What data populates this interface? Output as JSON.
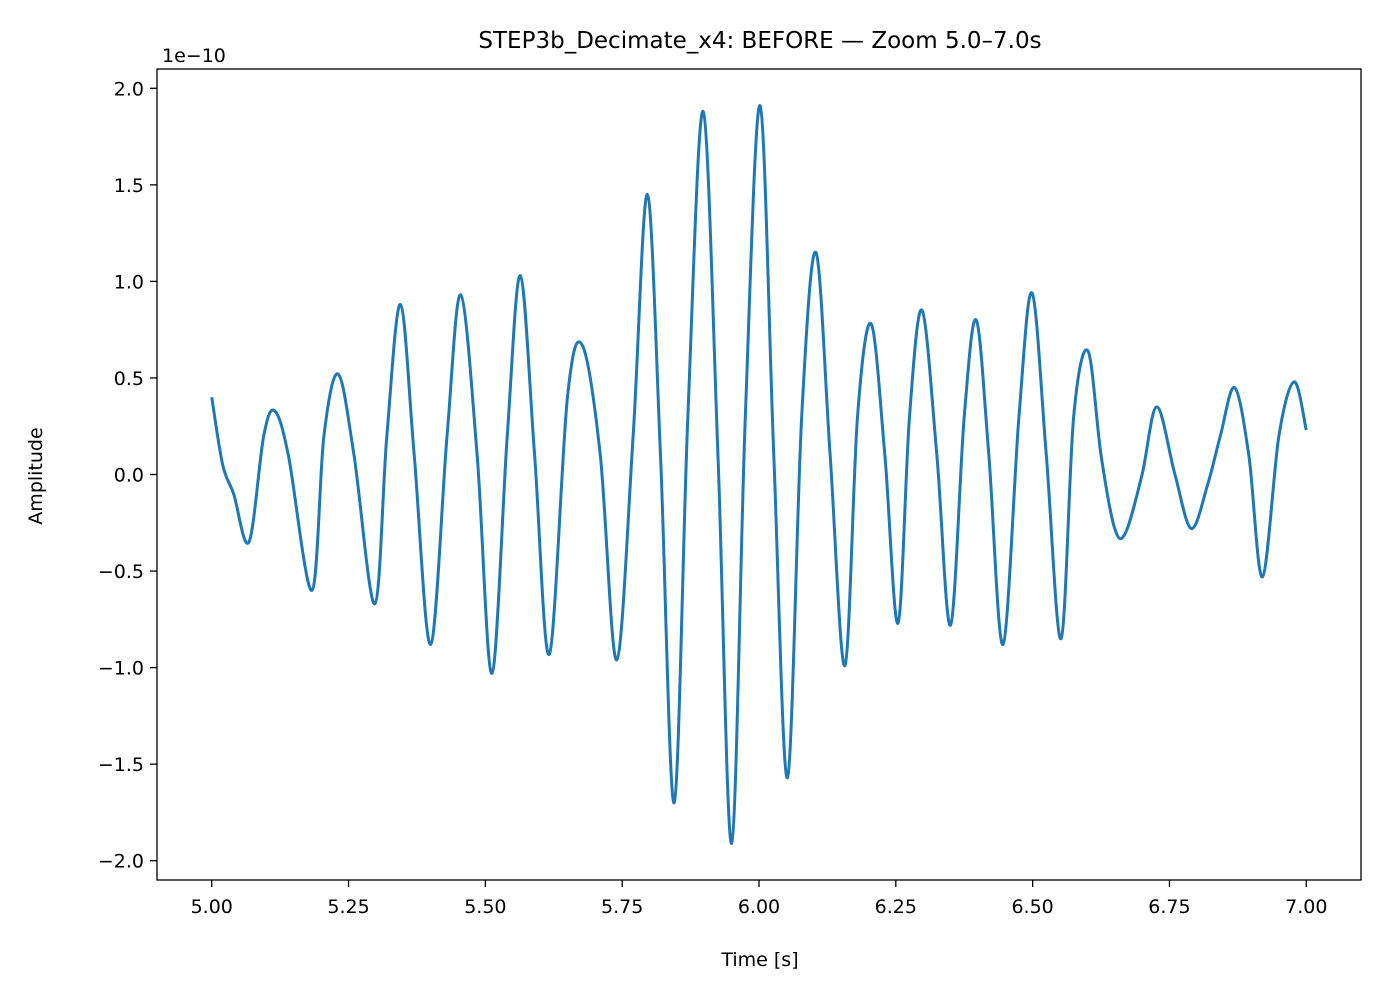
{
  "chart_data": {
    "type": "line",
    "title": "STEP3b_Decimate_x4: BEFORE — Zoom 5.0–7.0s",
    "xlabel": "Time [s]",
    "ylabel": "Amplitude",
    "y_offset_label": "1e−10",
    "xlim": [
      4.9,
      7.1
    ],
    "ylim": [
      -2.1,
      2.1
    ],
    "grid": false,
    "line_color": "#1f77b4",
    "x_ticks": [
      5.0,
      5.25,
      5.5,
      5.75,
      6.0,
      6.25,
      6.5,
      6.75,
      7.0
    ],
    "x_tick_labels": [
      "5.00",
      "5.25",
      "5.50",
      "5.75",
      "6.00",
      "6.25",
      "6.50",
      "6.75",
      "7.00"
    ],
    "y_ticks": [
      -2.0,
      -1.5,
      -1.0,
      -0.5,
      0.0,
      0.5,
      1.0,
      1.5,
      2.0
    ],
    "y_tick_labels": [
      "−2.0",
      "−1.5",
      "−1.0",
      "−0.5",
      "0.0",
      "0.5",
      "1.0",
      "1.5",
      "2.0"
    ],
    "series": [
      {
        "x": [
          5.0,
          5.02,
          5.04,
          5.068,
          5.095,
          5.115,
          5.14,
          5.183,
          5.205,
          5.231,
          5.26,
          5.298,
          5.32,
          5.345,
          5.37,
          5.4,
          5.43,
          5.455,
          5.485,
          5.512,
          5.54,
          5.564,
          5.59,
          5.617,
          5.65,
          5.677,
          5.71,
          5.74,
          5.77,
          5.796,
          5.82,
          5.845,
          5.87,
          5.898,
          5.925,
          5.95,
          5.975,
          6.002,
          6.027,
          6.052,
          6.078,
          6.104,
          6.13,
          6.157,
          6.18,
          6.205,
          6.23,
          6.254,
          6.275,
          6.298,
          6.325,
          6.35,
          6.375,
          6.397,
          6.42,
          6.446,
          6.475,
          6.499,
          6.525,
          6.552,
          6.575,
          6.601,
          6.625,
          6.65,
          6.67,
          6.7,
          6.727,
          6.76,
          6.79,
          6.82,
          6.843,
          6.869,
          6.895,
          6.92,
          6.95,
          6.978,
          7.0
        ],
        "y": [
          0.4,
          0.05,
          -0.1,
          -0.35,
          0.2,
          0.33,
          0.1,
          -0.6,
          0.2,
          0.52,
          0.1,
          -0.67,
          0.2,
          0.88,
          0.1,
          -0.88,
          0.2,
          0.93,
          0.1,
          -1.03,
          0.2,
          1.03,
          0.1,
          -0.93,
          0.4,
          0.67,
          0.1,
          -0.96,
          0.2,
          1.45,
          0.1,
          -1.7,
          0.3,
          1.88,
          0.1,
          -1.91,
          0.3,
          1.91,
          0.1,
          -1.57,
          0.3,
          1.15,
          0.1,
          -0.99,
          0.3,
          0.78,
          0.1,
          -0.77,
          0.3,
          0.85,
          0.1,
          -0.78,
          0.3,
          0.8,
          0.1,
          -0.88,
          0.3,
          0.94,
          0.1,
          -0.85,
          0.3,
          0.64,
          0.1,
          -0.28,
          -0.3,
          0.0,
          0.35,
          0.0,
          -0.28,
          -0.05,
          0.2,
          0.45,
          0.1,
          -0.53,
          0.2,
          0.48,
          0.23
        ]
      }
    ]
  }
}
